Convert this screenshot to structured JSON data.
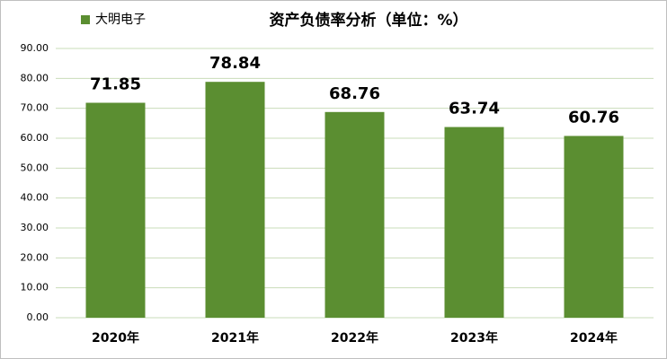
{
  "chart_data": {
    "type": "bar",
    "title": "资产负债率分析（单位：%）",
    "categories": [
      "2020年",
      "2021年",
      "2022年",
      "2023年",
      "2024年"
    ],
    "series": [
      {
        "name": "大明电子",
        "color": "#5b8e31",
        "values": [
          71.85,
          78.84,
          68.76,
          63.74,
          60.76
        ]
      }
    ],
    "ylim": [
      0,
      90
    ],
    "yticks": [
      {
        "value": 0,
        "label": "0.00"
      },
      {
        "value": 10,
        "label": "10.00"
      },
      {
        "value": 20,
        "label": "20.00"
      },
      {
        "value": 30,
        "label": "30.00"
      },
      {
        "value": 40,
        "label": "40.00"
      },
      {
        "value": 50,
        "label": "50.00"
      },
      {
        "value": 60,
        "label": "60.00"
      },
      {
        "value": 70,
        "label": "70.00"
      },
      {
        "value": 80,
        "label": "80.00"
      },
      {
        "value": 90,
        "label": "90.00"
      }
    ],
    "grid": true,
    "legend": "top-left"
  }
}
